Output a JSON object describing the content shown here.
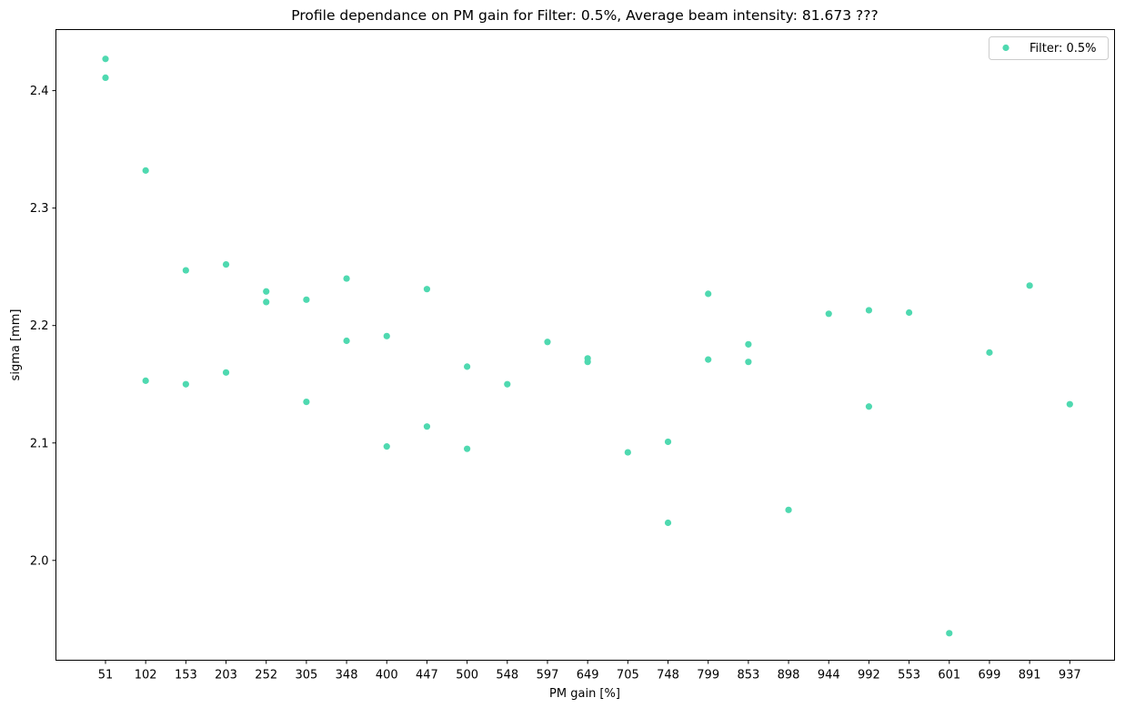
{
  "chart_data": {
    "type": "scatter",
    "title": "Profile dependance on PM gain for Filter: 0.5%, Average beam intensity: 81.673 ???",
    "xlabel": "PM gain [%]",
    "ylabel": "sigma [mm]",
    "categories": [
      "51",
      "102",
      "153",
      "203",
      "252",
      "305",
      "348",
      "400",
      "447",
      "500",
      "548",
      "597",
      "649",
      "705",
      "748",
      "799",
      "853",
      "898",
      "944",
      "992",
      "553",
      "601",
      "699",
      "891",
      "937"
    ],
    "yticks": [
      2.0,
      2.1,
      2.2,
      2.3,
      2.4
    ],
    "ytick_labels": [
      "2.0",
      "2.1",
      "2.2",
      "2.3",
      "2.4"
    ],
    "ylim": [
      1.915,
      2.452
    ],
    "grid": false,
    "legend_position": "top-right",
    "marker_color": "#4fd9b0",
    "series": [
      {
        "name": "Filter: 0.5%",
        "color": "#4fd9b0",
        "points": [
          {
            "x": "51",
            "y": 2.427
          },
          {
            "x": "51",
            "y": 2.411
          },
          {
            "x": "102",
            "y": 2.332
          },
          {
            "x": "102",
            "y": 2.153
          },
          {
            "x": "153",
            "y": 2.247
          },
          {
            "x": "153",
            "y": 2.15
          },
          {
            "x": "203",
            "y": 2.252
          },
          {
            "x": "203",
            "y": 2.16
          },
          {
            "x": "252",
            "y": 2.229
          },
          {
            "x": "252",
            "y": 2.22
          },
          {
            "x": "305",
            "y": 2.222
          },
          {
            "x": "305",
            "y": 2.135
          },
          {
            "x": "348",
            "y": 2.24
          },
          {
            "x": "348",
            "y": 2.187
          },
          {
            "x": "400",
            "y": 2.191
          },
          {
            "x": "400",
            "y": 2.097
          },
          {
            "x": "447",
            "y": 2.231
          },
          {
            "x": "447",
            "y": 2.114
          },
          {
            "x": "500",
            "y": 2.165
          },
          {
            "x": "500",
            "y": 2.095
          },
          {
            "x": "548",
            "y": 2.15
          },
          {
            "x": "597",
            "y": 2.186
          },
          {
            "x": "649",
            "y": 2.172
          },
          {
            "x": "649",
            "y": 2.169
          },
          {
            "x": "705",
            "y": 2.092
          },
          {
            "x": "748",
            "y": 2.101
          },
          {
            "x": "748",
            "y": 2.032
          },
          {
            "x": "799",
            "y": 2.227
          },
          {
            "x": "799",
            "y": 2.171
          },
          {
            "x": "853",
            "y": 2.184
          },
          {
            "x": "853",
            "y": 2.169
          },
          {
            "x": "898",
            "y": 2.043
          },
          {
            "x": "944",
            "y": 2.21
          },
          {
            "x": "992",
            "y": 2.213
          },
          {
            "x": "992",
            "y": 2.131
          },
          {
            "x": "553",
            "y": 2.211
          },
          {
            "x": "601",
            "y": 1.938
          },
          {
            "x": "699",
            "y": 2.177
          },
          {
            "x": "891",
            "y": 2.234
          },
          {
            "x": "937",
            "y": 2.133
          }
        ]
      }
    ]
  }
}
